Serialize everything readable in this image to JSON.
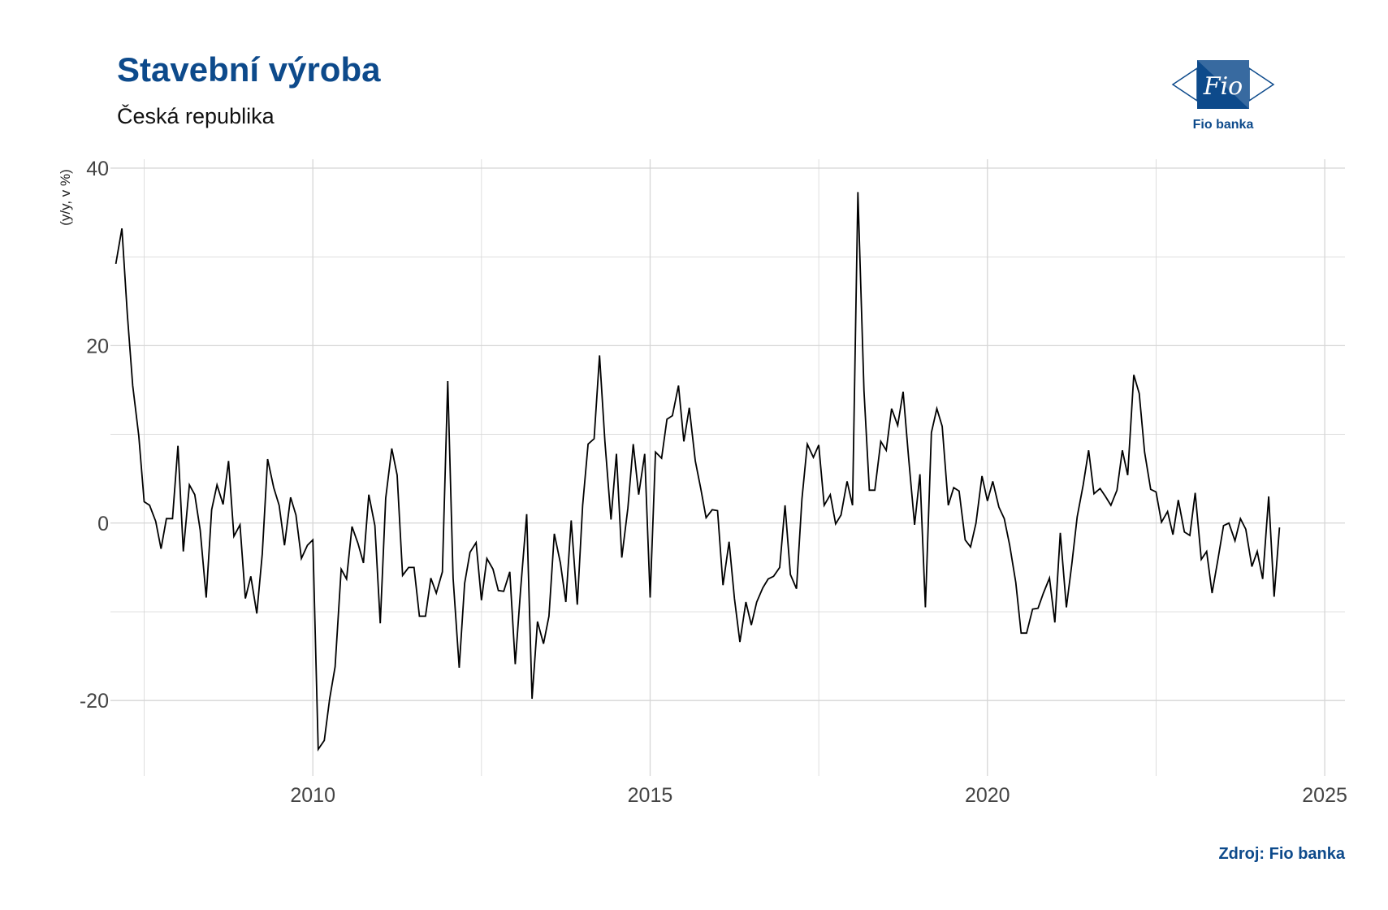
{
  "header": {
    "title": "Stavební výroba",
    "subtitle": "Česká republika"
  },
  "logo": {
    "icon": "fio-logo-icon",
    "mark_text": "Fio",
    "label": "Fio banka",
    "color": "#0d4a8b"
  },
  "footer": {
    "source": "Zdroj: Fio banka"
  },
  "chart_data": {
    "type": "line",
    "title": "Stavební výroba",
    "subtitle": "Česká republika",
    "xlabel": "",
    "ylabel": "(y/y, v %)",
    "xlim": [
      2007,
      2025.3
    ],
    "ylim": [
      -28.5,
      41
    ],
    "xticks": [
      2010,
      2015,
      2020,
      2025
    ],
    "yticks": [
      -20,
      0,
      20,
      40
    ],
    "grid": true,
    "legend": "none",
    "line_color": "#000000",
    "series": [
      {
        "x": [
          2007.08,
          2007.17,
          2007.25,
          2007.33,
          2007.42,
          2007.5,
          2007.58,
          2007.67,
          2007.75,
          2007.83,
          2007.92,
          2008.0,
          2008.08,
          2008.17,
          2008.25,
          2008.33,
          2008.42,
          2008.5,
          2008.58,
          2008.67,
          2008.75,
          2008.83,
          2008.92,
          2009.0,
          2009.08,
          2009.17,
          2009.25,
          2009.33,
          2009.42,
          2009.5,
          2009.58,
          2009.67,
          2009.75,
          2009.83,
          2009.92,
          2010.0,
          2010.08,
          2010.17,
          2010.25,
          2010.33,
          2010.42,
          2010.5,
          2010.58,
          2010.67,
          2010.75,
          2010.83,
          2010.92,
          2011.0,
          2011.08,
          2011.17,
          2011.25,
          2011.33,
          2011.42,
          2011.5,
          2011.58,
          2011.67,
          2011.75,
          2011.83,
          2011.92,
          2012.0,
          2012.08,
          2012.17,
          2012.25,
          2012.33,
          2012.42,
          2012.5,
          2012.58,
          2012.67,
          2012.75,
          2012.83,
          2012.92,
          2013.0,
          2013.08,
          2013.17,
          2013.25,
          2013.33,
          2013.42,
          2013.5,
          2013.58,
          2013.67,
          2013.75,
          2013.83,
          2013.92,
          2014.0,
          2014.08,
          2014.17,
          2014.25,
          2014.33,
          2014.42,
          2014.5,
          2014.58,
          2014.67,
          2014.75,
          2014.83,
          2014.92,
          2015.0,
          2015.08,
          2015.17,
          2015.25,
          2015.33,
          2015.42,
          2015.5,
          2015.58,
          2015.67,
          2015.75,
          2015.83,
          2015.92,
          2016.0,
          2016.08,
          2016.17,
          2016.25,
          2016.33,
          2016.42,
          2016.5,
          2016.58,
          2016.67,
          2016.75,
          2016.83,
          2016.92,
          2017.0,
          2017.08,
          2017.17,
          2017.25,
          2017.33,
          2017.42,
          2017.5,
          2017.58,
          2017.67,
          2017.75,
          2017.83,
          2017.92,
          2018.0,
          2018.08,
          2018.17,
          2018.25,
          2018.33,
          2018.42,
          2018.5,
          2018.58,
          2018.67,
          2018.75,
          2018.83,
          2018.92,
          2019.0,
          2019.08,
          2019.17,
          2019.25,
          2019.33,
          2019.42,
          2019.5,
          2019.58,
          2019.67,
          2019.75,
          2019.83,
          2019.92,
          2020.0,
          2020.08,
          2020.17,
          2020.25,
          2020.33,
          2020.42,
          2020.5,
          2020.58,
          2020.67,
          2020.75,
          2020.83,
          2020.92,
          2021.0,
          2021.08,
          2021.17,
          2021.25,
          2021.33,
          2021.42,
          2021.5,
          2021.58,
          2021.67,
          2021.75,
          2021.83,
          2021.92,
          2022.0,
          2022.08,
          2022.17,
          2022.25,
          2022.33,
          2022.42,
          2022.5,
          2022.58,
          2022.67,
          2022.75,
          2022.83,
          2022.92,
          2023.0,
          2023.08,
          2023.17,
          2023.25,
          2023.33,
          2023.42,
          2023.5,
          2023.58,
          2023.67,
          2023.75,
          2023.83,
          2023.92,
          2024.0,
          2024.08,
          2024.17,
          2024.25,
          2024.33
        ],
        "y": [
          29.2,
          33.2,
          23.5,
          15.5,
          9.8,
          2.4,
          2.0,
          0.2,
          -2.9,
          0.5,
          0.5,
          8.7,
          -3.2,
          4.3,
          3.2,
          -0.8,
          -8.4,
          1.5,
          4.3,
          2.1,
          7.0,
          -1.5,
          -0.2,
          -8.5,
          -6.0,
          -10.2,
          -3.5,
          7.2,
          4.0,
          2.0,
          -2.5,
          2.9,
          0.9,
          -4.0,
          -2.5,
          -1.9,
          -25.5,
          -24.5,
          -19.8,
          -16.2,
          -5.2,
          -6.3,
          -0.4,
          -2.3,
          -4.5,
          3.2,
          -0.3,
          -11.3,
          2.8,
          8.4,
          5.4,
          -5.9,
          -5.0,
          -5.0,
          -10.5,
          -10.5,
          -6.2,
          -7.9,
          -5.5,
          16.0,
          -6.2,
          -16.3,
          -6.8,
          -3.3,
          -2.2,
          -8.7,
          -4.0,
          -5.2,
          -7.6,
          -7.7,
          -5.5,
          -15.9,
          -7.5,
          1.0,
          -19.8,
          -11.1,
          -13.6,
          -10.5,
          -1.2,
          -4.5,
          -8.9,
          0.3,
          -9.2,
          2.0,
          8.9,
          9.5,
          18.9,
          9.2,
          0.4,
          7.8,
          -3.9,
          1.7,
          8.9,
          3.2,
          7.8,
          -8.4,
          8.0,
          7.3,
          11.7,
          12.1,
          15.5,
          9.2,
          13.0,
          7.0,
          3.9,
          0.6,
          1.5,
          1.4,
          -7.0,
          -2.1,
          -8.5,
          -13.4,
          -8.9,
          -11.5,
          -8.9,
          -7.3,
          -6.3,
          -6.0,
          -5.0,
          2.0,
          -5.8,
          -7.4,
          2.7,
          8.9,
          7.4,
          8.8,
          2.0,
          3.2,
          -0.1,
          0.9,
          4.7,
          2.0,
          37.3,
          14.9,
          3.7,
          3.7,
          9.2,
          8.2,
          12.9,
          11.0,
          14.8,
          7.5,
          -0.2,
          5.5,
          -9.5,
          10.2,
          12.9,
          10.9,
          2.0,
          4.0,
          3.6,
          -1.9,
          -2.7,
          0.0,
          5.3,
          2.5,
          4.7,
          1.8,
          0.5,
          -2.5,
          -6.7,
          -12.4,
          -12.4,
          -9.7,
          -9.6,
          -7.9,
          -6.2,
          -11.2,
          -1.1,
          -9.5,
          -4.7,
          0.7,
          4.3,
          8.2,
          3.3,
          3.9,
          3.0,
          2.0,
          3.7,
          8.2,
          5.4,
          16.7,
          14.6,
          8.0,
          3.8,
          3.5,
          0.1,
          1.3,
          -1.3,
          2.6,
          -1.0,
          -1.4,
          3.4,
          -4.1,
          -3.2,
          -7.9,
          -4.0,
          -0.3,
          0.0,
          -2.0,
          0.5,
          -0.7,
          -4.9,
          -3.2,
          -6.3,
          3.0,
          -8.3,
          -0.5
        ]
      }
    ]
  }
}
